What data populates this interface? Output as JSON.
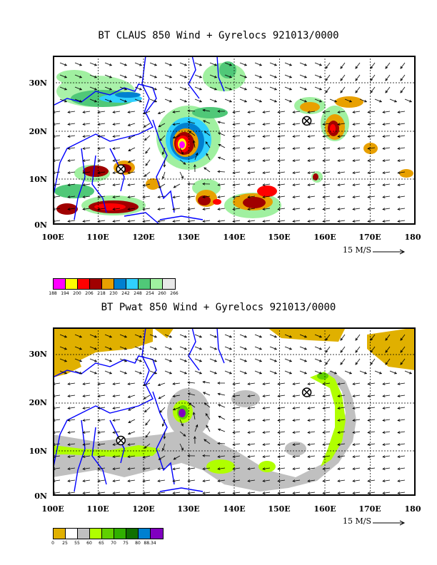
{
  "panels": [
    {
      "title": "BT CLAUS 850 Wind + Gyrelocs 921013/0000",
      "y_ticks": [
        "30N",
        "20N",
        "10N",
        "0N"
      ],
      "x_ticks": [
        "100E",
        "110E",
        "120E",
        "130E",
        "140E",
        "150E",
        "160E",
        "170E",
        "180"
      ],
      "scale_label": "15 M/S",
      "legend_colors": [
        "#ff00ff",
        "#ffff00",
        "#ff0000",
        "#a00000",
        "#e8a000",
        "#0080d0",
        "#30d0ff",
        "#50c878",
        "#a0f0a0",
        "#e8e8e8"
      ],
      "legend_labels": [
        "188",
        "194",
        "200",
        "206",
        "218",
        "230",
        "242",
        "248",
        "254",
        "260",
        "266"
      ],
      "markers": [
        {
          "lon": 115,
          "lat": 11.5
        },
        {
          "lon": 156,
          "lat": 21.5
        }
      ]
    },
    {
      "title": "BT Pwat 850 Wind + Gyrelocs 921013/0000",
      "y_ticks": [
        "30N",
        "20N",
        "10N",
        "0N"
      ],
      "x_ticks": [
        "100E",
        "110E",
        "120E",
        "130E",
        "140E",
        "150E",
        "160E",
        "170E",
        "180"
      ],
      "scale_label": "15 M/S",
      "legend_colors": [
        "#e0b000",
        "#ffffff",
        "#c0c0c0",
        "#b0ff00",
        "#60d000",
        "#30b000",
        "#107000",
        "#0080d0",
        "#8000c0"
      ],
      "legend_labels": [
        "0",
        "25",
        "55",
        "60",
        "65",
        "70",
        "75",
        "80",
        "88.34"
      ],
      "markers": [
        {
          "lon": 115,
          "lat": 11.5
        },
        {
          "lon": 156,
          "lat": 21.5
        }
      ]
    }
  ]
}
